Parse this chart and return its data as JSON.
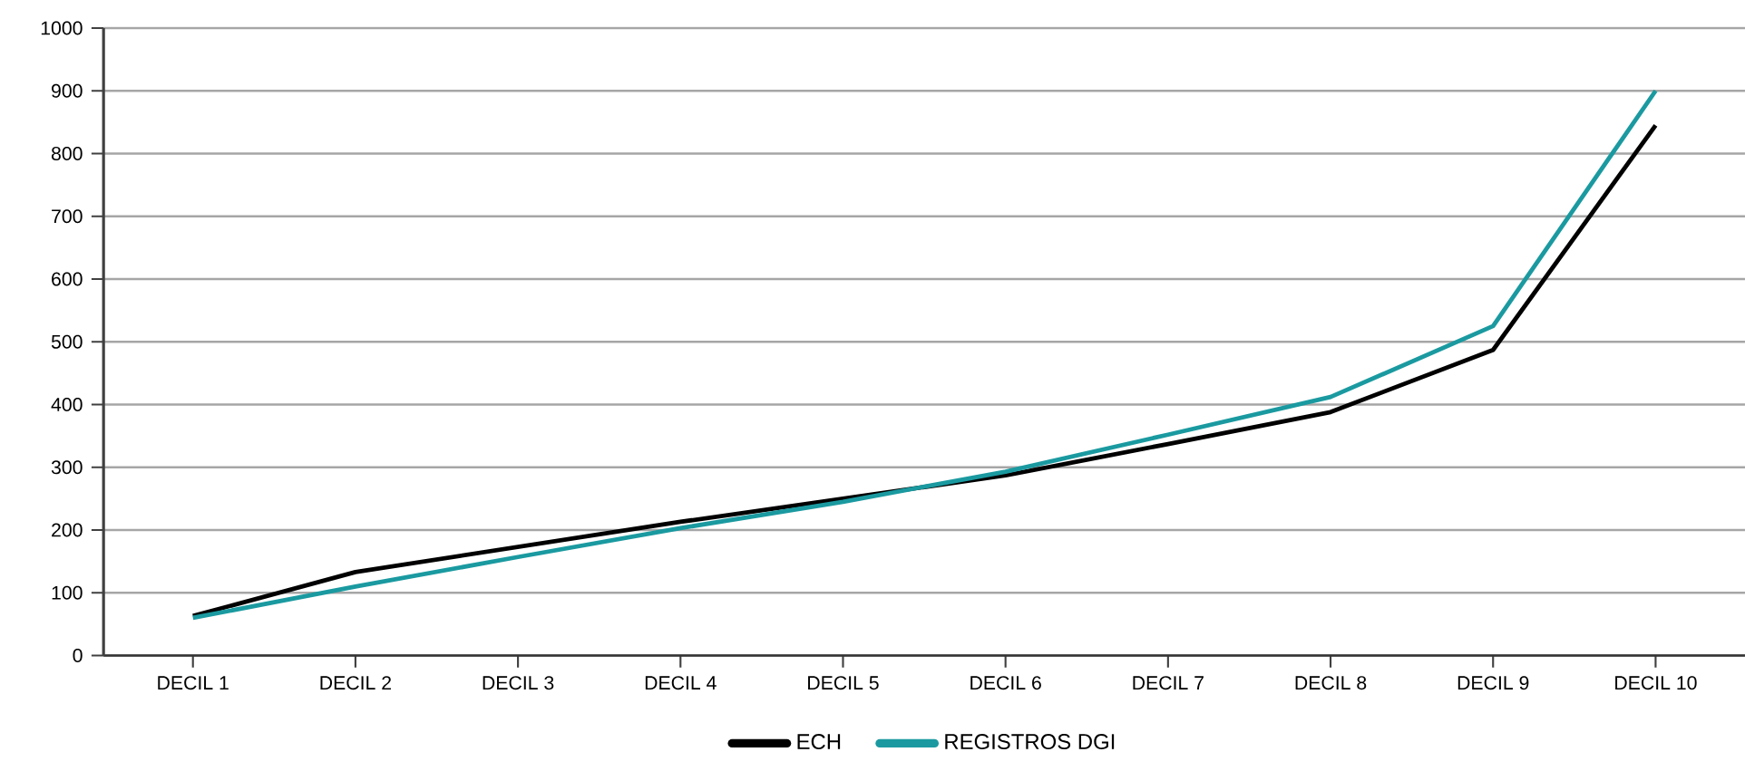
{
  "chart_data": {
    "type": "line",
    "categories": [
      "DECIL 1",
      "DECIL 2",
      "DECIL 3",
      "DECIL 4",
      "DECIL 5",
      "DECIL 6",
      "DECIL 7",
      "DECIL 8",
      "DECIL 9",
      "DECIL 10"
    ],
    "series": [
      {
        "name": "ECH",
        "color": "#000000",
        "values": [
          63,
          133,
          173,
          213,
          250,
          287,
          337,
          388,
          487,
          845
        ]
      },
      {
        "name": "REGISTROS DGI",
        "color": "#1a9aa0",
        "values": [
          60,
          110,
          157,
          203,
          245,
          293,
          352,
          412,
          525,
          900
        ]
      }
    ],
    "ylim": [
      0,
      1000
    ],
    "yticks": [
      0,
      100,
      200,
      300,
      400,
      500,
      600,
      700,
      800,
      900,
      1000
    ],
    "grid": "y",
    "legend": "bottom",
    "marker": "none",
    "line_style": "solid"
  }
}
